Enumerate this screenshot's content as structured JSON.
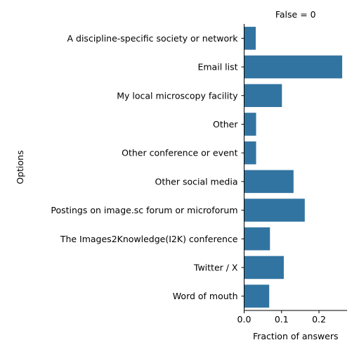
{
  "chart_data": {
    "type": "bar",
    "orientation": "horizontal",
    "facet_title": "False = 0",
    "xlabel": "Fraction of answers",
    "ylabel": "Options",
    "xlim": [
      0,
      0.275
    ],
    "x_ticks": [
      0.0,
      0.1,
      0.2
    ],
    "x_tick_labels": [
      "0.0",
      "0.1",
      "0.2"
    ],
    "grid": false,
    "bar_color": "#3274a1",
    "categories": [
      "A discipline-specific society or network",
      "Email list",
      "My local microscopy facility",
      "Other",
      "Other conference or event",
      "Other social media",
      "Postings on image.sc forum or microforum",
      "The Images2Knowledge(I2K) conference",
      "Twitter / X",
      "Word of mouth"
    ],
    "values": [
      0.031,
      0.262,
      0.101,
      0.032,
      0.032,
      0.132,
      0.162,
      0.069,
      0.106,
      0.067
    ]
  }
}
